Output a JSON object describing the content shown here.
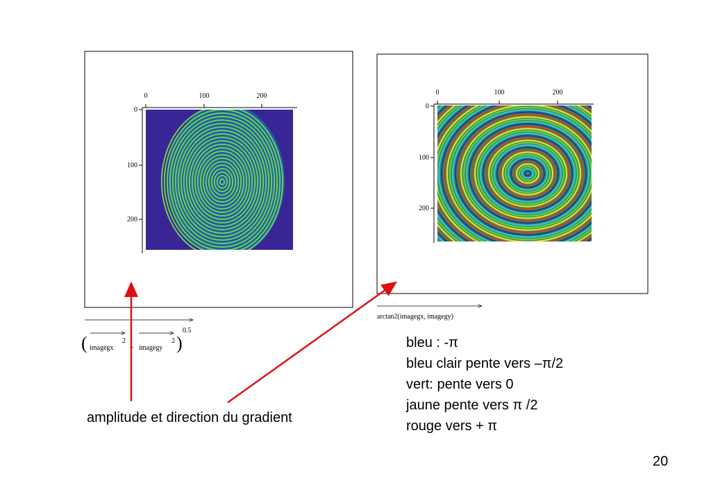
{
  "left_plot": {
    "xticks": [
      "0",
      "100",
      "200"
    ],
    "yticks": [
      "0",
      "100",
      "200"
    ],
    "formula": {
      "term1": "imagegx",
      "exp1": "2",
      "plus": "+",
      "term2": "imagegy",
      "exp2": "2",
      "power": "0.5"
    }
  },
  "right_plot": {
    "xticks": [
      "0",
      "100",
      "200"
    ],
    "yticks": [
      "0",
      "100",
      "200"
    ],
    "formula": "arctan2(imagegx, imagegy)"
  },
  "legend": [
    "bleu : -π",
    "bleu clair pente vers –π/2",
    "vert: pente vers 0",
    "jaune pente vers π /2",
    "rouge vers + π"
  ],
  "caption": "amplitude et direction du gradient",
  "page_number": "20"
}
